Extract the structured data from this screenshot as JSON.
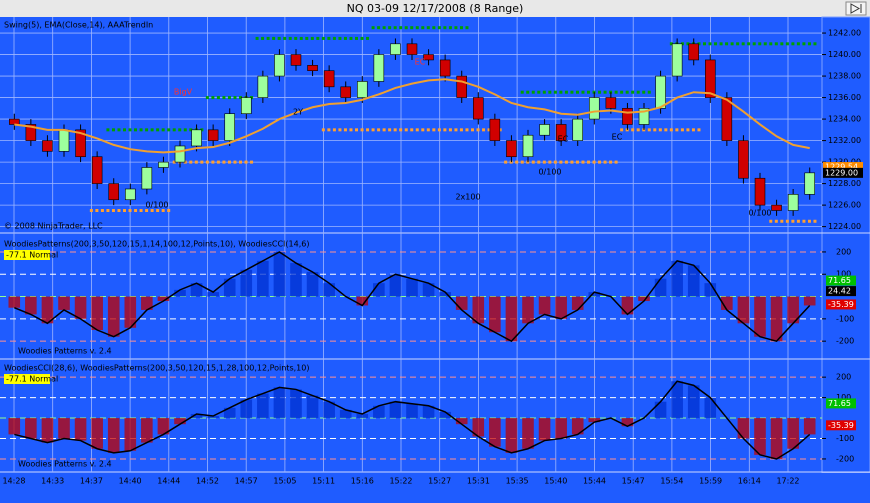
{
  "window": {
    "title": "NQ 03-09  12/17/2008 (8 Range)"
  },
  "price_panel": {
    "indicator_label": "Swing(5), EMA(Close,14), AAATrendIn",
    "copyright": "© 2008 NinjaTrader, LLC",
    "ylim": [
      1223.5,
      1243.4
    ],
    "yticks": [
      {
        "value": 1224,
        "label": "1224.00"
      },
      {
        "value": 1226,
        "label": "1226.00"
      },
      {
        "value": 1228,
        "label": "1228.00"
      },
      {
        "value": 1230,
        "label": "1230.00"
      },
      {
        "value": 1232,
        "label": "1232.00"
      },
      {
        "value": 1234,
        "label": "1234.00"
      },
      {
        "value": 1236,
        "label": "1236.00"
      },
      {
        "value": 1238,
        "label": "1238.00"
      },
      {
        "value": 1240,
        "label": "1240.00"
      },
      {
        "value": 1242,
        "label": "1242.00"
      }
    ],
    "open": [
      1234.0,
      1233.5,
      1232.0,
      1231.0,
      1233.0,
      1230.5,
      1228.0,
      1226.5,
      1227.5,
      1229.5,
      1230.0,
      1231.5,
      1233.0,
      1232.0,
      1234.5,
      1236.0,
      1238.0,
      1240.0,
      1239.0,
      1238.5,
      1237.0,
      1236.0,
      1237.5,
      1240.0,
      1241.0,
      1240.0,
      1239.5,
      1238.0,
      1236.0,
      1234.0,
      1232.0,
      1230.5,
      1232.5,
      1233.5,
      1232.0,
      1234.0,
      1236.0,
      1235.0,
      1233.5,
      1235.0,
      1238.0,
      1241.0,
      1239.5,
      1236.0,
      1232.0,
      1228.5,
      1226.0,
      1225.5,
      1227.0
    ],
    "high": [
      1234.5,
      1234.0,
      1232.5,
      1233.5,
      1233.5,
      1231.0,
      1228.5,
      1228.0,
      1230.0,
      1230.5,
      1232.0,
      1233.5,
      1233.5,
      1235.0,
      1236.5,
      1238.5,
      1240.5,
      1240.5,
      1239.5,
      1239.0,
      1237.5,
      1238.0,
      1240.5,
      1241.5,
      1241.5,
      1240.5,
      1240.0,
      1238.5,
      1236.5,
      1234.5,
      1232.5,
      1233.0,
      1234.0,
      1234.0,
      1234.5,
      1236.5,
      1236.5,
      1235.5,
      1235.5,
      1238.5,
      1241.5,
      1241.5,
      1240.0,
      1236.5,
      1232.5,
      1229.0,
      1226.5,
      1227.5,
      1229.5
    ],
    "low": [
      1233.0,
      1231.5,
      1230.5,
      1230.5,
      1230.0,
      1227.5,
      1226.0,
      1226.0,
      1227.0,
      1229.0,
      1229.5,
      1231.0,
      1231.5,
      1231.5,
      1234.0,
      1235.5,
      1237.5,
      1238.5,
      1238.0,
      1236.5,
      1235.5,
      1235.5,
      1237.0,
      1239.5,
      1239.5,
      1239.0,
      1237.5,
      1235.5,
      1233.5,
      1231.5,
      1230.0,
      1230.0,
      1232.0,
      1231.5,
      1231.5,
      1233.5,
      1234.5,
      1233.0,
      1233.0,
      1234.5,
      1237.5,
      1239.0,
      1235.5,
      1231.5,
      1228.0,
      1225.5,
      1225.0,
      1225.0,
      1226.5
    ],
    "close": [
      1233.5,
      1232.0,
      1231.0,
      1233.0,
      1230.5,
      1228.0,
      1226.5,
      1227.5,
      1229.5,
      1230.0,
      1231.5,
      1233.0,
      1232.0,
      1234.5,
      1236.0,
      1238.0,
      1240.0,
      1239.0,
      1238.5,
      1237.0,
      1236.0,
      1237.5,
      1240.0,
      1241.0,
      1240.0,
      1239.5,
      1238.0,
      1236.0,
      1234.0,
      1232.0,
      1230.5,
      1232.5,
      1233.5,
      1232.0,
      1234.0,
      1236.0,
      1235.0,
      1233.5,
      1235.0,
      1238.0,
      1241.0,
      1239.5,
      1236.0,
      1232.0,
      1228.5,
      1226.0,
      1225.5,
      1227.0,
      1229.0
    ],
    "ema": [
      1233.5,
      1233.3,
      1233.0,
      1233.0,
      1232.7,
      1232.2,
      1231.6,
      1231.2,
      1231.0,
      1230.9,
      1231.0,
      1231.3,
      1231.4,
      1231.8,
      1232.4,
      1233.1,
      1234.0,
      1234.6,
      1235.1,
      1235.4,
      1235.5,
      1235.8,
      1236.3,
      1236.9,
      1237.3,
      1237.6,
      1237.7,
      1237.5,
      1237.0,
      1236.3,
      1235.5,
      1235.1,
      1234.9,
      1234.5,
      1234.4,
      1234.7,
      1234.8,
      1234.6,
      1234.7,
      1235.1,
      1236.0,
      1236.5,
      1236.4,
      1235.8,
      1234.7,
      1233.5,
      1232.4,
      1231.6,
      1231.3
    ],
    "swing_high": [
      null,
      null,
      null,
      null,
      null,
      null,
      1233,
      1233,
      1233,
      1233,
      1233,
      1233,
      1236,
      1236,
      1236,
      1241.5,
      1241.5,
      1241.5,
      1241.5,
      1241.5,
      1241.5,
      1241.5,
      1242.5,
      1242.5,
      1242.5,
      1242.5,
      1242.5,
      1242.5,
      null,
      null,
      null,
      1236.5,
      1236.5,
      1236.5,
      1236.5,
      1236.5,
      1236.5,
      1236.5,
      1236.5,
      null,
      1241,
      1241,
      1241,
      1241,
      1241,
      1241,
      1241,
      1241,
      1241
    ],
    "swing_low": [
      null,
      null,
      null,
      null,
      null,
      1225.5,
      1225.5,
      1225.5,
      1225.5,
      1225.5,
      1230,
      1230,
      1230,
      1230,
      1230,
      null,
      null,
      null,
      null,
      1233,
      1233,
      1233,
      1233,
      1233,
      1233,
      1233,
      1233,
      1233,
      1233,
      1233,
      1230,
      1230,
      1230,
      1230,
      1230,
      1230,
      1230,
      1233,
      1233,
      1233,
      1233,
      1233,
      null,
      null,
      null,
      null,
      1224.5,
      1224.5,
      1224.5
    ],
    "price_labels": [
      {
        "value": 1229.54,
        "label": "1229.54",
        "color": "#ff8c00"
      },
      {
        "value": 1229,
        "label": "1229.00",
        "color": "#000000"
      }
    ],
    "annotations": [
      "BigV",
      "0/100",
      "2Y",
      "EC",
      "2x100",
      "0/100",
      "EC",
      "EC",
      "0/100"
    ]
  },
  "cci_panels": [
    {
      "indicator_label": "WoodiesPatterns(200,3,50,120,15,1,14,100,12,Points,10), WoodiesCCI(14,6)",
      "badge": "-77.1 Normal",
      "footer": "Woodies Patterns v. 2.4",
      "ylim": [
        -271,
        267
      ],
      "yticks": [
        200,
        100,
        -100,
        -200
      ],
      "cci": [
        -50,
        -80,
        -120,
        -60,
        -100,
        -150,
        -180,
        -140,
        -60,
        -20,
        30,
        60,
        20,
        80,
        120,
        160,
        200,
        150,
        110,
        60,
        0,
        -40,
        60,
        100,
        80,
        60,
        20,
        -60,
        -120,
        -160,
        -200,
        -120,
        -80,
        -100,
        -60,
        20,
        0,
        -80,
        -20,
        80,
        160,
        140,
        60,
        -60,
        -120,
        -180,
        -200,
        -120,
        -40
      ],
      "value_labels": [
        {
          "value": 71.65,
          "label": "71.65",
          "color": "#00c000"
        },
        {
          "value": 24.42,
          "label": "24.42",
          "color": "#000000"
        },
        {
          "value": -35.39,
          "label": "-35.39",
          "color": "#e00000"
        }
      ]
    },
    {
      "indicator_label": "WoodiesCCI(28,6), WoodiesPatterns(200,3,50,120,15,1,28,100,12,Points,10)",
      "badge": "-77.1 Normal",
      "footer": "Woodies Patterns v. 2.4",
      "ylim": [
        -254,
        279
      ],
      "yticks": [
        200,
        100,
        -100,
        -200
      ],
      "cci": [
        -80,
        -100,
        -120,
        -100,
        -110,
        -150,
        -170,
        -160,
        -120,
        -80,
        -30,
        20,
        10,
        50,
        90,
        120,
        150,
        140,
        110,
        80,
        40,
        20,
        60,
        80,
        70,
        60,
        30,
        -30,
        -90,
        -140,
        -170,
        -150,
        -110,
        -100,
        -80,
        -20,
        0,
        -40,
        0,
        80,
        180,
        160,
        100,
        0,
        -100,
        -180,
        -200,
        -150,
        -80
      ],
      "value_labels": [
        {
          "value": 71.65,
          "label": "71.65",
          "color": "#00c000"
        },
        {
          "value": -35.39,
          "label": "-35.39",
          "color": "#e00000"
        }
      ]
    }
  ],
  "time_labels": [
    "14:28",
    "14:33",
    "14:37",
    "14:40",
    "14:44",
    "14:52",
    "14:57",
    "15:05",
    "15:11",
    "15:16",
    "15:22",
    "15:27",
    "15:31",
    "15:35",
    "15:40",
    "15:44",
    "15:47",
    "15:54",
    "15:59",
    "16:14",
    "17:22"
  ]
}
